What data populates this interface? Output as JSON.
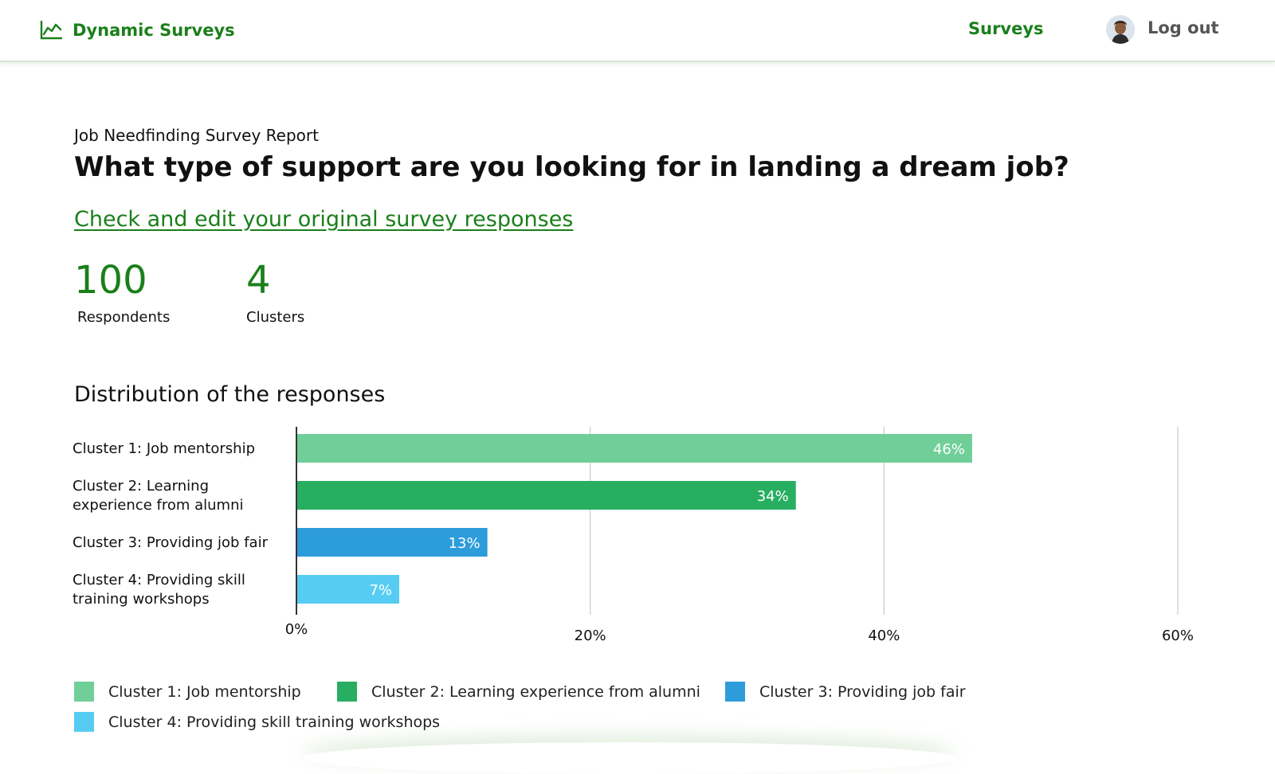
{
  "header": {
    "brand_name": "Dynamic Surveys",
    "brand_icon": "line-chart-icon",
    "nav_surveys": "Surveys",
    "logout": "Log out"
  },
  "report": {
    "label": "Job Needfinding Survey Report",
    "question": "What type of support are you looking for in landing a dream job?",
    "edit_link": "Check and edit your original survey responses"
  },
  "stats": {
    "respondents_value": "100",
    "respondents_label": "Respondents",
    "clusters_value": "4",
    "clusters_label": "Clusters"
  },
  "distribution_title": "Distribution of the responses",
  "chart_data": {
    "type": "bar",
    "orientation": "horizontal",
    "title": "",
    "xlabel": "",
    "ylabel": "",
    "categories": [
      "Cluster 1: Job mentorship",
      "Cluster 2: Learning experience from alumni",
      "Cluster 3: Providing job fair",
      "Cluster 4: Providing skill training workshops"
    ],
    "category_label_lines": [
      [
        "Cluster 1: Job mentorship"
      ],
      [
        "Cluster 2: Learning",
        "experience from alumni"
      ],
      [
        "Cluster 3: Providing job fair"
      ],
      [
        "Cluster 4: Providing skill",
        "training workshops"
      ]
    ],
    "values": [
      46,
      34,
      13,
      7
    ],
    "data_labels": [
      "46%",
      "34%",
      "13%",
      "7%"
    ],
    "colors": [
      "#70cf98",
      "#27ae60",
      "#2d9cdb",
      "#56ccf2"
    ],
    "xlim": [
      0,
      60
    ],
    "x_ticks": [
      0,
      20,
      40,
      60
    ],
    "x_tick_labels": [
      "0%",
      "20%",
      "40%",
      "60%"
    ],
    "grid": true,
    "legend_position": "bottom"
  },
  "legend": [
    {
      "label": "Cluster 1: Job mentorship",
      "color": "#70cf98"
    },
    {
      "label": "Cluster 2: Learning experience from alumni",
      "color": "#27ae60"
    },
    {
      "label": "Cluster 3: Providing job fair",
      "color": "#2d9cdb"
    },
    {
      "label": "Cluster 4: Providing skill training workshops",
      "color": "#56ccf2"
    }
  ]
}
